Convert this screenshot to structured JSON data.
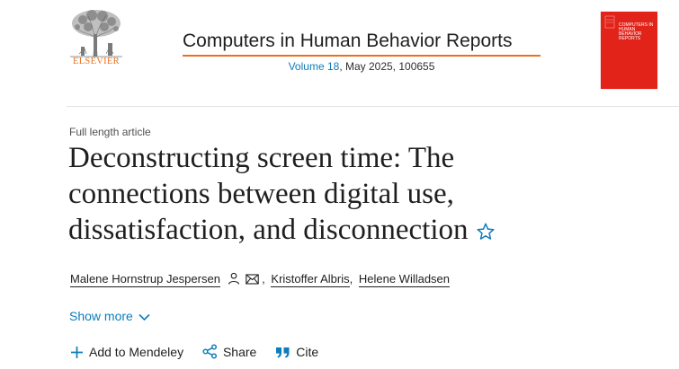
{
  "header": {
    "publisher_name": "ELSEVIER",
    "journal_title": "Computers in Human Behavior Reports",
    "volume_link": "Volume 18",
    "issue_details": ", May 2025, 100655",
    "cover_text": "COMPUTERS IN HUMAN BEHAVIOR REPORTS",
    "accent_color": "#e9711c",
    "link_color": "#0c7dbb",
    "cover_color": "#e2231a"
  },
  "article": {
    "type": "Full length article",
    "title_lines": [
      "Deconstructing screen time: The",
      "connections between digital use,",
      "dissatisfaction, and disconnection"
    ],
    "star_icon": "star-outline-icon"
  },
  "authors": [
    {
      "name": "Malene Hornstrup Jespersen",
      "icons": [
        "person-icon",
        "envelope-icon"
      ]
    },
    {
      "name": "Kristoffer Albris"
    },
    {
      "name": "Helene Willadsen"
    }
  ],
  "author_separator": ",",
  "show_more": {
    "label": "Show more",
    "icon": "chevron-down-icon"
  },
  "actions": [
    {
      "label": "Add to Mendeley",
      "icon": "plus-icon"
    },
    {
      "label": "Share",
      "icon": "share-icon"
    },
    {
      "label": "Cite",
      "icon": "quote-icon"
    }
  ]
}
